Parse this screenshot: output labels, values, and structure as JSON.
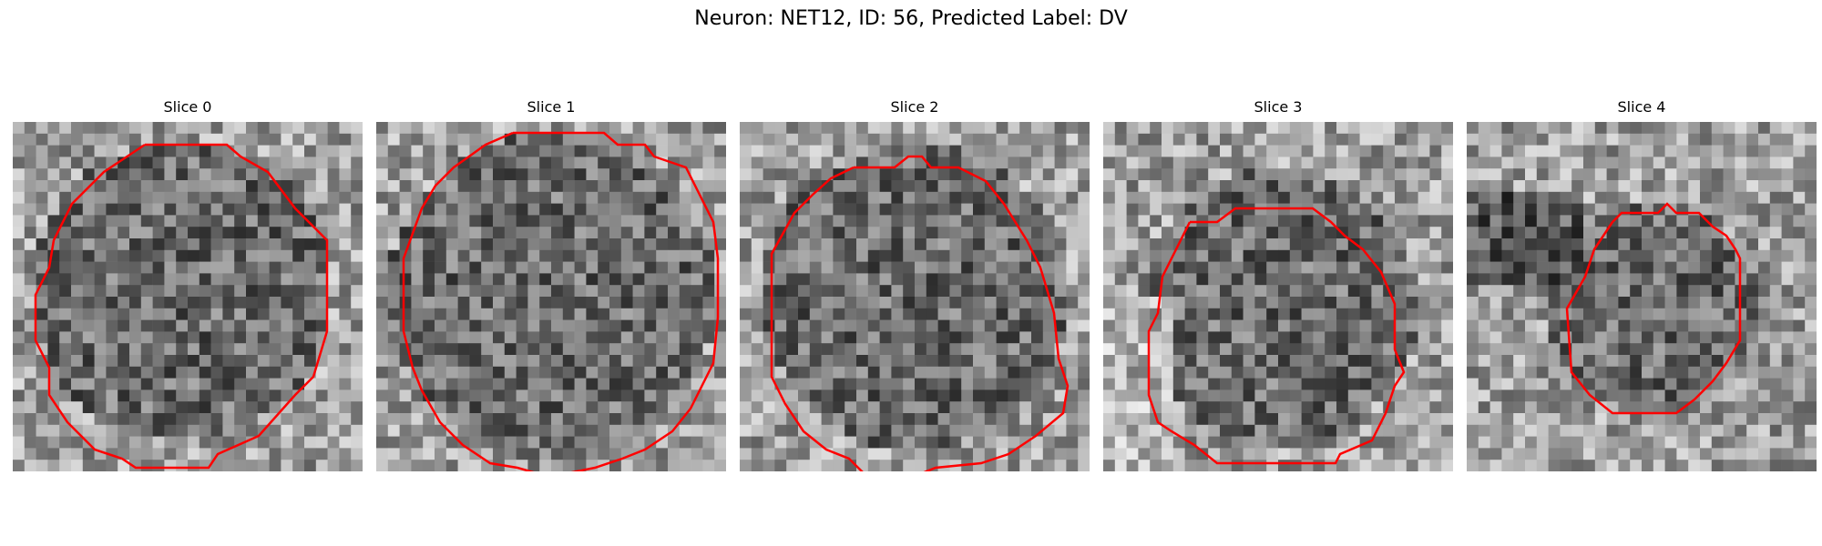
{
  "figure": {
    "title": "Neuron: NET12, ID: 56, Predicted Label: DV"
  },
  "panels": [
    {
      "title": "Slice 0"
    },
    {
      "title": "Slice 1"
    },
    {
      "title": "Slice 2"
    },
    {
      "title": "Slice 3"
    },
    {
      "title": "Slice 4"
    }
  ],
  "colors": {
    "contour": "#ff0000",
    "colormap": "gray"
  }
}
